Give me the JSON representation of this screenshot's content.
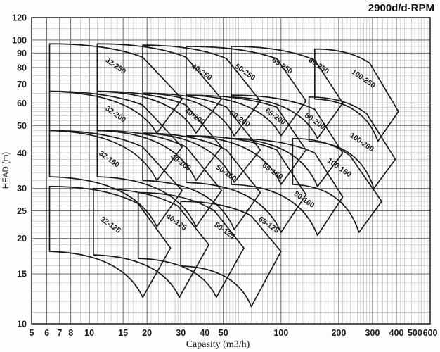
{
  "title": "2900d/d-RPM",
  "chart_data": {
    "type": "area",
    "title": "2900d/d-RPM",
    "xlabel": "Capasity (m3/h)",
    "ylabel": "HEAD (m)",
    "x_scale": "log",
    "y_scale": "log",
    "xlim": [
      5,
      600
    ],
    "ylim": [
      10,
      120
    ],
    "x_ticks": [
      5,
      6,
      7,
      8,
      10,
      15,
      20,
      30,
      40,
      50,
      100,
      200,
      300,
      400,
      500,
      600
    ],
    "y_ticks": [
      10,
      15,
      20,
      25,
      30,
      40,
      50,
      60,
      70,
      80,
      90,
      100,
      120
    ],
    "grid": "log-log graph paper, minor+major lines",
    "legend_position": "none",
    "colors": {
      "background": "#fdfdfb",
      "frame": "#2b2b2b",
      "grid_major": "#5f5f5f",
      "grid_minor": "#b4b4b4",
      "curve": "#1b1b1b",
      "text": "#111111"
    },
    "envelope_note": "Each pump field is a closed region given by corner points [capacity m3/h, head m]: tl=top-left, tr=top-right(end of max-impeller curve), rp=rightmost point, bv=bottom V vertex, bl=bottom-left. Left edge is vertical; top and lower edges are curved.",
    "envelopes": [
      {
        "label": "32-250",
        "tl": [
          6.2,
          97
        ],
        "tr": [
          19,
          87
        ],
        "rp": [
          30.5,
          62
        ],
        "bv": [
          22.5,
          47
        ],
        "bl": [
          6.2,
          66
        ],
        "label_pos": [
          13.5,
          80
        ]
      },
      {
        "label": "40-250",
        "tl": [
          11,
          97
        ],
        "tr": [
          32,
          87
        ],
        "rp": [
          49,
          62
        ],
        "bv": [
          36,
          47
        ],
        "bl": [
          11,
          66
        ],
        "label_pos": [
          38,
          76
        ]
      },
      {
        "label": "50-250",
        "tl": [
          19,
          96
        ],
        "tr": [
          52,
          86
        ],
        "rp": [
          78,
          61
        ],
        "bv": [
          57,
          46
        ],
        "bl": [
          19,
          65
        ],
        "label_pos": [
          64,
          76
        ]
      },
      {
        "label": "65-250",
        "tl": [
          32,
          95
        ],
        "tr": [
          95,
          86
        ],
        "rp": [
          135,
          61
        ],
        "bv": [
          100,
          46
        ],
        "bl": [
          32,
          64
        ],
        "label_pos": [
          100,
          80
        ]
      },
      {
        "label": "80-250",
        "tl": [
          55,
          95
        ],
        "tr": [
          150,
          85
        ],
        "rp": [
          210,
          60
        ],
        "bv": [
          155,
          45
        ],
        "bl": [
          55,
          63
        ],
        "label_pos": [
          155,
          80
        ]
      },
      {
        "label": "100-250",
        "tl": [
          150,
          93
        ],
        "tr": [
          290,
          83
        ],
        "rp": [
          410,
          56
        ],
        "bv": [
          320,
          44
        ],
        "bl": [
          150,
          62
        ],
        "label_pos": [
          265,
          72
        ]
      },
      {
        "label": "32-200",
        "tl": [
          6.2,
          66
        ],
        "tr": [
          19,
          59
        ],
        "rp": [
          30.5,
          42
        ],
        "bv": [
          22.5,
          32
        ],
        "bl": [
          6.2,
          48
        ],
        "label_pos": [
          13.5,
          54
        ]
      },
      {
        "label": "40-200",
        "tl": [
          11,
          66
        ],
        "tr": [
          32,
          59
        ],
        "rp": [
          49,
          42
        ],
        "bv": [
          36,
          32
        ],
        "bl": [
          11,
          48
        ],
        "label_pos": [
          35,
          53
        ]
      },
      {
        "label": "50-200",
        "tl": [
          19,
          65
        ],
        "tr": [
          52,
          58
        ],
        "rp": [
          78,
          41
        ],
        "bv": [
          57,
          31.5
        ],
        "bl": [
          19,
          47
        ],
        "label_pos": [
          60,
          52
        ]
      },
      {
        "label": "65-200",
        "tl": [
          32,
          64
        ],
        "tr": [
          95,
          58
        ],
        "rp": [
          135,
          41
        ],
        "bv": [
          100,
          31
        ],
        "bl": [
          32,
          46
        ],
        "label_pos": [
          92,
          53
        ]
      },
      {
        "label": "80-200",
        "tl": [
          55,
          64
        ],
        "tr": [
          150,
          57
        ],
        "rp": [
          210,
          40
        ],
        "bv": [
          155,
          30.5
        ],
        "bl": [
          55,
          45
        ],
        "label_pos": [
          148,
          51
        ]
      },
      {
        "label": "100-200",
        "tl": [
          140,
          63
        ],
        "tr": [
          280,
          55
        ],
        "rp": [
          395,
          38
        ],
        "bv": [
          305,
          30
        ],
        "bl": [
          140,
          44
        ],
        "label_pos": [
          260,
          43
        ]
      },
      {
        "label": "32-160",
        "tl": [
          6.2,
          48
        ],
        "tr": [
          19,
          42
        ],
        "rp": [
          30.5,
          29.5
        ],
        "bv": [
          22.5,
          22
        ],
        "bl": [
          6.2,
          33
        ],
        "label_pos": [
          12.5,
          37.5
        ]
      },
      {
        "label": "40-160",
        "tl": [
          11,
          48
        ],
        "tr": [
          32,
          42
        ],
        "rp": [
          49,
          29.5
        ],
        "bv": [
          36,
          22
        ],
        "bl": [
          11,
          33
        ],
        "label_pos": [
          29.5,
          36.5
        ]
      },
      {
        "label": "50-160",
        "tl": [
          19,
          47
        ],
        "tr": [
          52,
          41
        ],
        "rp": [
          78,
          29
        ],
        "bv": [
          57,
          21.5
        ],
        "bl": [
          19,
          32
        ],
        "label_pos": [
          51,
          33.5
        ]
      },
      {
        "label": "65-160",
        "tl": [
          32,
          46
        ],
        "tr": [
          95,
          41
        ],
        "rp": [
          135,
          28.5
        ],
        "bv": [
          100,
          21
        ],
        "bl": [
          32,
          31.5
        ],
        "label_pos": [
          89,
          34
        ]
      },
      {
        "label": "80-160",
        "tl": [
          55,
          45
        ],
        "tr": [
          150,
          40
        ],
        "rp": [
          210,
          28
        ],
        "bv": [
          155,
          20.5
        ],
        "bl": [
          55,
          31
        ],
        "label_pos": [
          130,
          27
        ]
      },
      {
        "label": "100-160",
        "tl": [
          115,
          45
        ],
        "tr": [
          230,
          39
        ],
        "rp": [
          335,
          27
        ],
        "bv": [
          255,
          21
        ],
        "bl": [
          115,
          31
        ],
        "label_pos": [
          198,
          35
        ]
      },
      {
        "label": "32-125",
        "tl": [
          6.2,
          30.5
        ],
        "tr": [
          18,
          26.5
        ],
        "rp": [
          26.5,
          18.5
        ],
        "bv": [
          19,
          12.4
        ],
        "bl": [
          6.2,
          18
        ],
        "label_pos": [
          12.7,
          22
        ]
      },
      {
        "label": "40-125",
        "tl": [
          10.5,
          30
        ],
        "tr": [
          29,
          26
        ],
        "rp": [
          42,
          19
        ],
        "bv": [
          29.5,
          12.4
        ],
        "bl": [
          10.5,
          17.5
        ],
        "label_pos": [
          28,
          22.5
        ]
      },
      {
        "label": "50-125",
        "tl": [
          18,
          29
        ],
        "tr": [
          45,
          25
        ],
        "rp": [
          64,
          18.5
        ],
        "bv": [
          46,
          12.4
        ],
        "bl": [
          18,
          17
        ],
        "label_pos": [
          50,
          21
        ]
      },
      {
        "label": "65-125",
        "tl": [
          30,
          27
        ],
        "tr": [
          70,
          24
        ],
        "rp": [
          100,
          18
        ],
        "bv": [
          70,
          11.5
        ],
        "bl": [
          30,
          16
        ],
        "label_pos": [
          85,
          22
        ]
      }
    ],
    "x_minor_ranges": [
      [
        5,
        10,
        1
      ],
      [
        10,
        30,
        1
      ],
      [
        30,
        60,
        2
      ],
      [
        60,
        100,
        5
      ],
      [
        100,
        300,
        10
      ],
      [
        300,
        600,
        20
      ]
    ],
    "y_minor_ranges": [
      [
        10,
        30,
        1
      ],
      [
        30,
        60,
        2
      ],
      [
        60,
        120,
        5
      ]
    ]
  }
}
